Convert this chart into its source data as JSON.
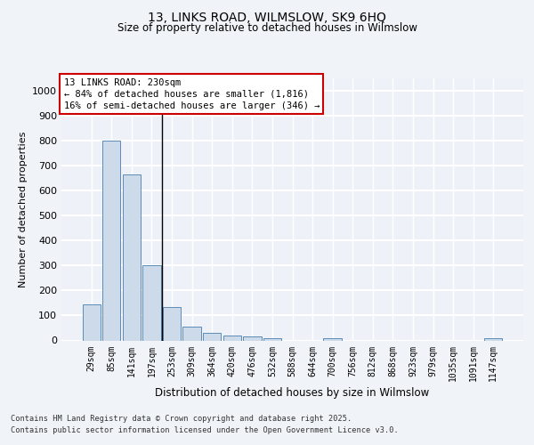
{
  "title1": "13, LINKS ROAD, WILMSLOW, SK9 6HQ",
  "title2": "Size of property relative to detached houses in Wilmslow",
  "xlabel": "Distribution of detached houses by size in Wilmslow",
  "ylabel": "Number of detached properties",
  "categories": [
    "29sqm",
    "85sqm",
    "141sqm",
    "197sqm",
    "253sqm",
    "309sqm",
    "364sqm",
    "420sqm",
    "476sqm",
    "532sqm",
    "588sqm",
    "644sqm",
    "700sqm",
    "756sqm",
    "812sqm",
    "868sqm",
    "923sqm",
    "979sqm",
    "1035sqm",
    "1091sqm",
    "1147sqm"
  ],
  "values": [
    145,
    800,
    665,
    300,
    135,
    55,
    32,
    20,
    17,
    10,
    0,
    0,
    10,
    0,
    0,
    0,
    0,
    0,
    0,
    0,
    8
  ],
  "bar_color": "#ccdaea",
  "bar_edge_color": "#5b8db8",
  "annotation_text_line1": "13 LINKS ROAD: 230sqm",
  "annotation_text_line2": "← 84% of detached houses are smaller (1,816)",
  "annotation_text_line3": "16% of semi-detached houses are larger (346) →",
  "ylim": [
    0,
    1050
  ],
  "yticks": [
    0,
    100,
    200,
    300,
    400,
    500,
    600,
    700,
    800,
    900,
    1000
  ],
  "bg_color": "#eef2f8",
  "grid_color": "#ffffff",
  "footer_line1": "Contains HM Land Registry data © Crown copyright and database right 2025.",
  "footer_line2": "Contains public sector information licensed under the Open Government Licence v3.0."
}
